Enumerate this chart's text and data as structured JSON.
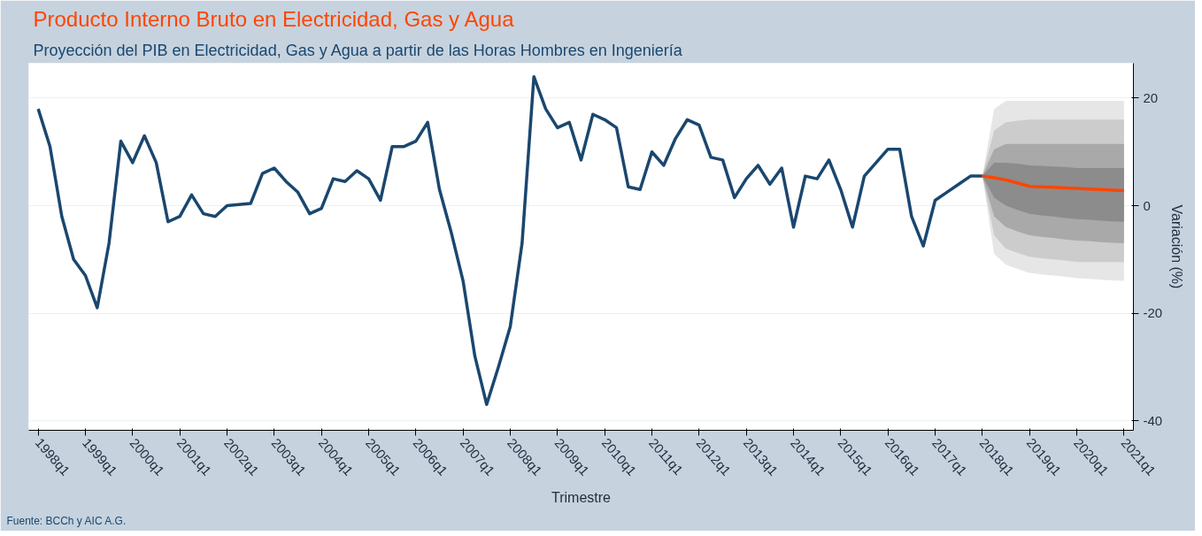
{
  "chart_data": {
    "type": "line",
    "title": "Producto Interno Bruto en Electricidad, Gas y Agua",
    "subtitle": "Proyección del PIB en Electricidad, Gas y Agua a partir de las Horas Hombres en Ingeniería",
    "xlabel": "Trimestre",
    "ylabel": "Variación (%)",
    "annotations": [
      "Fuente: BCCh y AIC A.G."
    ],
    "categories": [
      "1998q1",
      null,
      null,
      null,
      "1999q1",
      null,
      null,
      null,
      "2000q1",
      null,
      null,
      null,
      "2001q1",
      null,
      null,
      null,
      "2002q1",
      null,
      null,
      null,
      "2003q1",
      null,
      null,
      null,
      "2004q1",
      null,
      null,
      null,
      "2005q1",
      null,
      null,
      null,
      "2006q1",
      null,
      null,
      null,
      "2007q1",
      null,
      null,
      null,
      "2008q1",
      null,
      null,
      null,
      "2009q1",
      null,
      null,
      null,
      "2010q1",
      null,
      null,
      null,
      "2011q1",
      null,
      null,
      null,
      "2012q1",
      null,
      null,
      null,
      "2013q1",
      null,
      null,
      null,
      "2014q1",
      null,
      null,
      null,
      "2015q1",
      null,
      null,
      null,
      "2016q1",
      null,
      null,
      null,
      "2017q1",
      null,
      null,
      null,
      "2018q1",
      null,
      null,
      null,
      "2019q1",
      null,
      null,
      null,
      "2020q1",
      null,
      null,
      null,
      "2021q1"
    ],
    "ylim": [
      -41.8,
      26.5
    ],
    "yticks": [
      -40,
      -20,
      0,
      20
    ],
    "grid": "y",
    "line_style": "solid",
    "series": [
      {
        "type": "area",
        "color": "#e6e6e6",
        "values": [
          null,
          null,
          null,
          null,
          null,
          null,
          null,
          null,
          null,
          null,
          null,
          null,
          null,
          null,
          null,
          null,
          null,
          null,
          null,
          null,
          null,
          null,
          null,
          null,
          null,
          null,
          null,
          null,
          null,
          null,
          null,
          null,
          null,
          null,
          null,
          null,
          null,
          null,
          null,
          null,
          null,
          null,
          null,
          null,
          null,
          null,
          null,
          null,
          null,
          null,
          null,
          null,
          null,
          null,
          null,
          null,
          null,
          null,
          null,
          null,
          null,
          null,
          null,
          null,
          null,
          null,
          null,
          null,
          null,
          null,
          null,
          null,
          null,
          null,
          null,
          null,
          null,
          null,
          null,
          null,
          null,
          null,
          null,
          null,
          null,
          null,
          null,
          null,
          null,
          null,
          null,
          null,
          null
        ],
        "lower": [
          null,
          null,
          null,
          null,
          null,
          null,
          null,
          null,
          null,
          null,
          null,
          null,
          null,
          null,
          null,
          null,
          null,
          null,
          null,
          null,
          null,
          null,
          null,
          null,
          null,
          null,
          null,
          null,
          null,
          null,
          null,
          null,
          null,
          null,
          null,
          null,
          null,
          null,
          null,
          null,
          null,
          null,
          null,
          null,
          null,
          null,
          null,
          null,
          null,
          null,
          null,
          null,
          null,
          null,
          null,
          null,
          null,
          null,
          null,
          null,
          null,
          null,
          null,
          null,
          null,
          null,
          null,
          null,
          null,
          null,
          null,
          null,
          null,
          null,
          null,
          null,
          null,
          null,
          null,
          null,
          5.5,
          -9,
          -11,
          -11.8,
          -12.5,
          -12.8,
          -13,
          -13.2,
          -13.5,
          -13.6,
          -13.8,
          -13.9,
          -14
        ],
        "upper": [
          null,
          null,
          null,
          null,
          null,
          null,
          null,
          null,
          null,
          null,
          null,
          null,
          null,
          null,
          null,
          null,
          null,
          null,
          null,
          null,
          null,
          null,
          null,
          null,
          null,
          null,
          null,
          null,
          null,
          null,
          null,
          null,
          null,
          null,
          null,
          null,
          null,
          null,
          null,
          null,
          null,
          null,
          null,
          null,
          null,
          null,
          null,
          null,
          null,
          null,
          null,
          null,
          null,
          null,
          null,
          null,
          null,
          null,
          null,
          null,
          null,
          null,
          null,
          null,
          null,
          null,
          null,
          null,
          null,
          null,
          null,
          null,
          null,
          null,
          null,
          null,
          null,
          null,
          null,
          null,
          5.5,
          18,
          19.5,
          19.5,
          19.5,
          19.5,
          19.5,
          19.5,
          19.5,
          19.5,
          19.5,
          19.5,
          19.5
        ]
      },
      {
        "type": "area",
        "color": "#cccccc",
        "values": [
          null,
          null,
          null,
          null,
          null,
          null,
          null,
          null,
          null,
          null,
          null,
          null,
          null,
          null,
          null,
          null,
          null,
          null,
          null,
          null,
          null,
          null,
          null,
          null,
          null,
          null,
          null,
          null,
          null,
          null,
          null,
          null,
          null,
          null,
          null,
          null,
          null,
          null,
          null,
          null,
          null,
          null,
          null,
          null,
          null,
          null,
          null,
          null,
          null,
          null,
          null,
          null,
          null,
          null,
          null,
          null,
          null,
          null,
          null,
          null,
          null,
          null,
          null,
          null,
          null,
          null,
          null,
          null,
          null,
          null,
          null,
          null,
          null,
          null,
          null,
          null,
          null,
          null,
          null,
          null,
          null,
          null,
          null,
          null,
          null,
          null,
          null,
          null,
          null,
          null,
          null,
          null,
          null
        ],
        "lower": [
          null,
          null,
          null,
          null,
          null,
          null,
          null,
          null,
          null,
          null,
          null,
          null,
          null,
          null,
          null,
          null,
          null,
          null,
          null,
          null,
          null,
          null,
          null,
          null,
          null,
          null,
          null,
          null,
          null,
          null,
          null,
          null,
          null,
          null,
          null,
          null,
          null,
          null,
          null,
          null,
          null,
          null,
          null,
          null,
          null,
          null,
          null,
          null,
          null,
          null,
          null,
          null,
          null,
          null,
          null,
          null,
          null,
          null,
          null,
          null,
          null,
          null,
          null,
          null,
          null,
          null,
          null,
          null,
          null,
          null,
          null,
          null,
          null,
          null,
          null,
          null,
          null,
          null,
          null,
          null,
          5.5,
          -5.5,
          -8,
          -8.8,
          -9.5,
          -9.8,
          -10,
          -10.2,
          -10.5,
          -10.5,
          -10.5,
          -10.5,
          -10.5
        ],
        "upper": [
          null,
          null,
          null,
          null,
          null,
          null,
          null,
          null,
          null,
          null,
          null,
          null,
          null,
          null,
          null,
          null,
          null,
          null,
          null,
          null,
          null,
          null,
          null,
          null,
          null,
          null,
          null,
          null,
          null,
          null,
          null,
          null,
          null,
          null,
          null,
          null,
          null,
          null,
          null,
          null,
          null,
          null,
          null,
          null,
          null,
          null,
          null,
          null,
          null,
          null,
          null,
          null,
          null,
          null,
          null,
          null,
          null,
          null,
          null,
          null,
          null,
          null,
          null,
          null,
          null,
          null,
          null,
          null,
          null,
          null,
          null,
          null,
          null,
          null,
          null,
          null,
          null,
          null,
          null,
          null,
          5.5,
          14,
          15.5,
          15.8,
          16,
          16,
          16,
          16,
          16,
          16,
          16,
          16,
          16
        ]
      },
      {
        "type": "area",
        "color": "#a9a9a9",
        "values": [
          null,
          null,
          null,
          null,
          null,
          null,
          null,
          null,
          null,
          null,
          null,
          null,
          null,
          null,
          null,
          null,
          null,
          null,
          null,
          null,
          null,
          null,
          null,
          null,
          null,
          null,
          null,
          null,
          null,
          null,
          null,
          null,
          null,
          null,
          null,
          null,
          null,
          null,
          null,
          null,
          null,
          null,
          null,
          null,
          null,
          null,
          null,
          null,
          null,
          null,
          null,
          null,
          null,
          null,
          null,
          null,
          null,
          null,
          null,
          null,
          null,
          null,
          null,
          null,
          null,
          null,
          null,
          null,
          null,
          null,
          null,
          null,
          null,
          null,
          null,
          null,
          null,
          null,
          null,
          null,
          null,
          null,
          null,
          null,
          null,
          null,
          null,
          null,
          null,
          null,
          null,
          null,
          null
        ],
        "lower": [
          null,
          null,
          null,
          null,
          null,
          null,
          null,
          null,
          null,
          null,
          null,
          null,
          null,
          null,
          null,
          null,
          null,
          null,
          null,
          null,
          null,
          null,
          null,
          null,
          null,
          null,
          null,
          null,
          null,
          null,
          null,
          null,
          null,
          null,
          null,
          null,
          null,
          null,
          null,
          null,
          null,
          null,
          null,
          null,
          null,
          null,
          null,
          null,
          null,
          null,
          null,
          null,
          null,
          null,
          null,
          null,
          null,
          null,
          null,
          null,
          null,
          null,
          null,
          null,
          null,
          null,
          null,
          null,
          null,
          null,
          null,
          null,
          null,
          null,
          null,
          null,
          null,
          null,
          null,
          null,
          5.5,
          -2,
          -4,
          -4.8,
          -5.5,
          -5.8,
          -6,
          -6.3,
          -6.5,
          -6.6,
          -6.8,
          -6.9,
          -7
        ],
        "upper": [
          null,
          null,
          null,
          null,
          null,
          null,
          null,
          null,
          null,
          null,
          null,
          null,
          null,
          null,
          null,
          null,
          null,
          null,
          null,
          null,
          null,
          null,
          null,
          null,
          null,
          null,
          null,
          null,
          null,
          null,
          null,
          null,
          null,
          null,
          null,
          null,
          null,
          null,
          null,
          null,
          null,
          null,
          null,
          null,
          null,
          null,
          null,
          null,
          null,
          null,
          null,
          null,
          null,
          null,
          null,
          null,
          null,
          null,
          null,
          null,
          null,
          null,
          null,
          null,
          null,
          null,
          null,
          null,
          null,
          null,
          null,
          null,
          null,
          null,
          null,
          null,
          null,
          null,
          null,
          null,
          5.5,
          10.5,
          11.5,
          11.5,
          11.5,
          11.5,
          11.5,
          11.5,
          11.5,
          11.5,
          11.5,
          11.5,
          11.5
        ]
      },
      {
        "type": "area",
        "color": "#8c8c8c",
        "values": [
          null,
          null,
          null,
          null,
          null,
          null,
          null,
          null,
          null,
          null,
          null,
          null,
          null,
          null,
          null,
          null,
          null,
          null,
          null,
          null,
          null,
          null,
          null,
          null,
          null,
          null,
          null,
          null,
          null,
          null,
          null,
          null,
          null,
          null,
          null,
          null,
          null,
          null,
          null,
          null,
          null,
          null,
          null,
          null,
          null,
          null,
          null,
          null,
          null,
          null,
          null,
          null,
          null,
          null,
          null,
          null,
          null,
          null,
          null,
          null,
          null,
          null,
          null,
          null,
          null,
          null,
          null,
          null,
          null,
          null,
          null,
          null,
          null,
          null,
          null,
          null,
          null,
          null,
          null,
          null,
          null,
          null,
          null,
          null,
          null,
          null,
          null,
          null,
          null,
          null,
          null,
          null,
          null
        ],
        "lower": [
          null,
          null,
          null,
          null,
          null,
          null,
          null,
          null,
          null,
          null,
          null,
          null,
          null,
          null,
          null,
          null,
          null,
          null,
          null,
          null,
          null,
          null,
          null,
          null,
          null,
          null,
          null,
          null,
          null,
          null,
          null,
          null,
          null,
          null,
          null,
          null,
          null,
          null,
          null,
          null,
          null,
          null,
          null,
          null,
          null,
          null,
          null,
          null,
          null,
          null,
          null,
          null,
          null,
          null,
          null,
          null,
          null,
          null,
          null,
          null,
          null,
          null,
          null,
          null,
          null,
          null,
          null,
          null,
          null,
          null,
          null,
          null,
          null,
          null,
          null,
          null,
          null,
          null,
          null,
          null,
          5.5,
          1.5,
          0,
          -0.8,
          -1.5,
          -1.8,
          -2,
          -2.3,
          -2.5,
          -2.6,
          -2.8,
          -2.9,
          -3
        ],
        "upper": [
          null,
          null,
          null,
          null,
          null,
          null,
          null,
          null,
          null,
          null,
          null,
          null,
          null,
          null,
          null,
          null,
          null,
          null,
          null,
          null,
          null,
          null,
          null,
          null,
          null,
          null,
          null,
          null,
          null,
          null,
          null,
          null,
          null,
          null,
          null,
          null,
          null,
          null,
          null,
          null,
          null,
          null,
          null,
          null,
          null,
          null,
          null,
          null,
          null,
          null,
          null,
          null,
          null,
          null,
          null,
          null,
          null,
          null,
          null,
          null,
          null,
          null,
          null,
          null,
          null,
          null,
          null,
          null,
          null,
          null,
          null,
          null,
          null,
          null,
          null,
          null,
          null,
          null,
          null,
          null,
          5.5,
          8,
          8,
          7.8,
          7.5,
          7.4,
          7.3,
          7.2,
          7,
          7,
          7,
          7,
          7
        ]
      },
      {
        "color": "#1a476f",
        "values": [
          18,
          11,
          -2,
          -10,
          -13,
          -19,
          -7,
          12,
          8,
          13,
          8,
          -3,
          -2,
          2,
          -1.5,
          -2,
          0,
          0.2,
          0.4,
          6,
          7,
          4.5,
          2.5,
          -1.5,
          -0.5,
          5,
          4.5,
          6.5,
          5,
          1,
          11,
          11,
          12,
          15.5,
          3,
          -5,
          -14,
          -28,
          -37,
          -30,
          -22.5,
          -7,
          24,
          18,
          14.5,
          15.5,
          8.5,
          17,
          16,
          14.5,
          3.5,
          3,
          10,
          7.5,
          12.5,
          16,
          15,
          9,
          8.5,
          1.5,
          5,
          7.5,
          4,
          7,
          -4,
          5.5,
          5,
          8.5,
          3,
          -4,
          5.5,
          8,
          10.5,
          10.5,
          -2,
          -7.5,
          1,
          2.5,
          4,
          5.5,
          5.5,
          null,
          null,
          null,
          null,
          null,
          null,
          null,
          null,
          null,
          null,
          null,
          null
        ]
      },
      {
        "color": "#ff4500",
        "values": [
          null,
          null,
          null,
          null,
          null,
          null,
          null,
          null,
          null,
          null,
          null,
          null,
          null,
          null,
          null,
          null,
          null,
          null,
          null,
          null,
          null,
          null,
          null,
          null,
          null,
          null,
          null,
          null,
          null,
          null,
          null,
          null,
          null,
          null,
          null,
          null,
          null,
          null,
          null,
          null,
          null,
          null,
          null,
          null,
          null,
          null,
          null,
          null,
          null,
          null,
          null,
          null,
          null,
          null,
          null,
          null,
          null,
          null,
          null,
          null,
          null,
          null,
          null,
          null,
          null,
          null,
          null,
          null,
          null,
          null,
          null,
          null,
          null,
          null,
          null,
          null,
          null,
          null,
          null,
          null,
          5.5,
          5.2,
          4.8,
          4.2,
          3.6,
          3.5,
          3.4,
          3.3,
          3.2,
          3.1,
          3,
          2.9,
          2.8
        ]
      }
    ]
  }
}
